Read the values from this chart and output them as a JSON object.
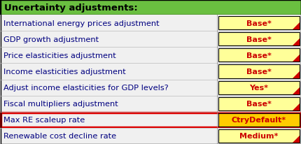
{
  "title": "Uncertainty adjustments:",
  "title_bg": "#6abf40",
  "title_color": "#000000",
  "bg_color": "#f0f0f0",
  "row_bg_color": "#f0f0f0",
  "rows": [
    {
      "label": "International energy prices adjustment",
      "value": "Base*",
      "highlighted": false
    },
    {
      "label": "GDP growth adjustment",
      "value": "Base*",
      "highlighted": false
    },
    {
      "label": "Price elasticities adjustment",
      "value": "Base*",
      "highlighted": false
    },
    {
      "label": "Income elasticities adjustment",
      "value": "Base*",
      "highlighted": false
    },
    {
      "label": "Adjust income elasticities for GDP levels?",
      "value": "Yes*",
      "highlighted": false
    },
    {
      "label": "Fiscal multipliers adjustment",
      "value": "Base*",
      "highlighted": false
    },
    {
      "label": "Max RE scaleup rate",
      "value": "CtryDefault*",
      "highlighted": true
    },
    {
      "label": "Renewable cost decline rate",
      "value": "Medium*",
      "highlighted": false
    }
  ],
  "value_box_color": "#ffff99",
  "value_box_border": "#000000",
  "value_text_color": "#cc0000",
  "label_color": "#000080",
  "highlight_row_border": "#dd0000",
  "highlight_value_box_color": "#ffcc00",
  "red_corner_color": "#cc0000",
  "outer_border_color": "#000000"
}
